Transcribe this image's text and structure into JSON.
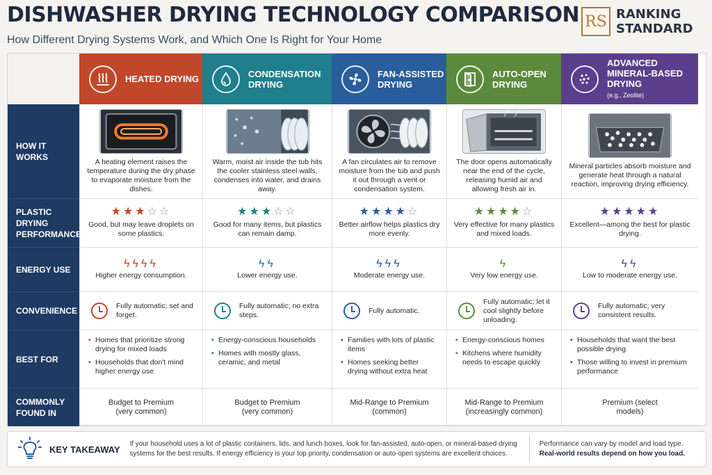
{
  "header": {
    "title": "DISHWASHER DRYING TECHNOLOGY COMPARISON",
    "subtitle": "How Different Drying Systems Work, and Which One Is Right for Your Home",
    "logo_mark": "RS",
    "logo_line1": "RANKING",
    "logo_line2": "STANDARD"
  },
  "colors": {
    "heated": "#c0472a",
    "condensation": "#1f7f8c",
    "fan": "#2a5d9c",
    "autoopen": "#5b8a3c",
    "mineral": "#5b3f8c",
    "rowhead": "#1f3a63"
  },
  "row_labels": {
    "how": "HOW IT WORKS",
    "plastic": "PLASTIC DRYING PERFORMANCE",
    "energy": "ENERGY USE",
    "convenience": "CONVENIENCE",
    "best": "BEST FOR",
    "found": "COMMONLY FOUND IN"
  },
  "columns": [
    {
      "id": "heated",
      "title": "HEATED DRYING",
      "note": "",
      "icon": "heat-waves-icon",
      "how": "A heating element raises the temperature during the dry phase to evaporate moisture from the dishes.",
      "stars": 3,
      "plastic_text": "Good, but may leave droplets on some plastics.",
      "bolts": 4,
      "energy_text": "Higher energy consumption.",
      "convenience": "Fully automatic; set and forget.",
      "best_for": [
        "Homes that prioritize strong drying for mixed loads",
        "Households that don't mind higher energy use"
      ],
      "found": "Budget to Premium (very common)"
    },
    {
      "id": "condensation",
      "title": "CONDENSATION DRYING",
      "note": "",
      "icon": "water-drop-icon",
      "how": "Warm, moist air inside the tub hits the cooler stainless steel walls, condenses into water, and drains away.",
      "stars": 3,
      "plastic_text": "Good for many items, but plastics can remain damp.",
      "bolts": 2,
      "energy_text": "Lower energy use.",
      "convenience": "Fully automatic; no extra steps.",
      "best_for": [
        "Energy-conscious households",
        "Homes with mostly glass, ceramic, and metal"
      ],
      "found": "Budget to Premium (very common)"
    },
    {
      "id": "fan",
      "title": "FAN-ASSISTED DRYING",
      "note": "",
      "icon": "fan-icon",
      "how": "A fan circulates air to remove moisture from the tub and push it out through a vent or condensation system.",
      "stars": 4,
      "plastic_text": "Better airflow helps plastics dry more evenly.",
      "bolts": 3,
      "energy_text": "Moderate energy use.",
      "convenience": "Fully automatic.",
      "best_for": [
        "Families with lots of plastic items",
        "Homes seeking better drying without extra heat"
      ],
      "found": "Mid-Range to Premium (common)"
    },
    {
      "id": "autoopen",
      "title": "AUTO-OPEN DRYING",
      "note": "",
      "icon": "open-door-icon",
      "how": "The door opens automatically near the end of the cycle, releasing humid air and allowing fresh air in.",
      "stars": 4,
      "plastic_text": "Very effective for many plastics and mixed loads.",
      "bolts": 1,
      "energy_text": "Very low energy use.",
      "convenience": "Fully automatic; let it cool slightly before unloading.",
      "best_for": [
        "Energy-conscious homes",
        "Kitchens where humidity needs to escape quickly"
      ],
      "found": "Mid-Range to Premium (increasingly common)"
    },
    {
      "id": "mineral",
      "title": "ADVANCED MINERAL-BASED DRYING",
      "note": "(e.g., Zeolite)",
      "icon": "mineral-dots-icon",
      "how": "Mineral particles absorb moisture and generate heat through a natural reaction, improving drying efficiency.",
      "stars": 5,
      "plastic_text": "Excellent—among the best for plastic drying.",
      "bolts": 2,
      "energy_text": "Low to moderate energy use.",
      "convenience": "Fully automatic; very consistent results.",
      "best_for": [
        "Households that want the best possible drying",
        "Those willing to invest in premium performance"
      ],
      "found": "Premium (select models)"
    }
  ],
  "takeaway": {
    "label": "KEY TAKEAWAY",
    "text": "If your household uses a lot of plastic containers, lids, and lunch boxes, look for fan-assisted, auto-open, or mineral-based drying systems for the best results. If energy efficiency is your top priority, condensation or auto-open systems are excellent choices.",
    "note1": "Performance can vary by model and load type.",
    "note2": "Real-world results depend on how you load."
  }
}
